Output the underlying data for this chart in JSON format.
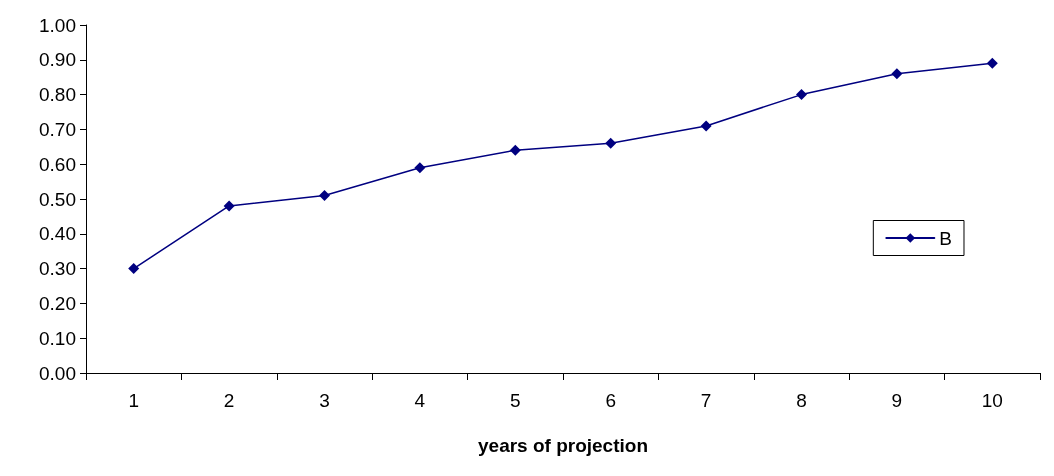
{
  "chart_data": {
    "type": "line",
    "xlabel": "years of projection",
    "categories": [
      "1",
      "2",
      "3",
      "4",
      "5",
      "6",
      "7",
      "8",
      "9",
      "10"
    ],
    "series": [
      {
        "name": "B",
        "color": "#000080",
        "values": [
          0.3,
          0.48,
          0.51,
          0.59,
          0.64,
          0.66,
          0.71,
          0.8,
          0.86,
          0.89
        ]
      }
    ],
    "ylim": [
      0,
      1
    ],
    "yticks": [
      {
        "value": 0,
        "label": "0.00"
      },
      {
        "value": 0.1,
        "label": "0.10"
      },
      {
        "value": 0.2,
        "label": "0.20"
      },
      {
        "value": 0.3,
        "label": "0.30"
      },
      {
        "value": 0.4,
        "label": "0.40"
      },
      {
        "value": 0.5,
        "label": "0.50"
      },
      {
        "value": 0.6,
        "label": "0.60"
      },
      {
        "value": 0.7,
        "label": "0.70"
      },
      {
        "value": 0.8,
        "label": "0.80"
      },
      {
        "value": 0.9,
        "label": "0.90"
      },
      {
        "value": 1,
        "label": "1.00"
      }
    ],
    "grid": false,
    "legend": "right",
    "marker": "diamond",
    "line_style": "solid"
  }
}
